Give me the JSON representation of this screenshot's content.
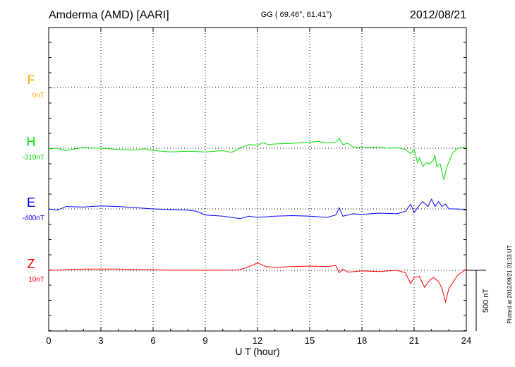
{
  "header": {
    "station": "Amderma (AMD)  [AARI]",
    "coords": "GG ( 69.46°,  61.41°)",
    "date": "2012/08/21"
  },
  "footer": {
    "plotted": "Plotted at 2012/09/21 01:33 UT"
  },
  "chart_data": {
    "type": "line",
    "xlabel": "U T (hour)",
    "xlim": [
      0,
      24
    ],
    "xticks": [
      "0",
      "3",
      "6",
      "9",
      "12",
      "15",
      "18",
      "21",
      "24"
    ],
    "scale_bar": {
      "label": "500 nT",
      "value_nT": 500
    },
    "grid": true,
    "series": [
      {
        "name": "F",
        "baseline": "0nT",
        "color": "#ffa500",
        "x": [],
        "y": []
      },
      {
        "name": "H",
        "baseline": "-310nT",
        "color": "#00e000",
        "x": [
          0,
          0.5,
          1,
          1.5,
          2,
          3,
          4,
          5,
          5.5,
          6,
          7,
          8,
          9,
          10,
          10.5,
          11,
          11.5,
          12,
          12.3,
          12.6,
          13,
          14,
          15,
          15.5,
          16,
          16.5,
          16.7,
          16.9,
          17.2,
          17.5,
          18,
          19,
          19.5,
          20,
          20.5,
          20.8,
          21,
          21.2,
          21.3,
          21.5,
          21.7,
          21.9,
          22.1,
          22.2,
          22.3,
          22.5,
          22.7,
          22.9,
          23.2,
          23.5,
          24
        ],
        "y": [
          -5,
          0,
          -20,
          -5,
          5,
          0,
          -10,
          -15,
          -5,
          -20,
          -30,
          -25,
          -30,
          -20,
          -35,
          0,
          30,
          25,
          45,
          30,
          35,
          40,
          50,
          55,
          45,
          50,
          80,
          30,
          40,
          10,
          5,
          10,
          0,
          5,
          -10,
          -45,
          -10,
          -120,
          -80,
          -150,
          -120,
          -130,
          -100,
          -60,
          -150,
          -130,
          -260,
          -150,
          -40,
          0,
          10
        ]
      },
      {
        "name": "E",
        "baseline": "-400nT",
        "color": "#0000ff",
        "x": [
          0,
          0.5,
          1,
          2,
          3,
          4,
          5,
          6,
          7,
          8,
          8.5,
          9,
          10,
          11,
          11.5,
          12,
          13,
          14,
          15,
          16,
          16.5,
          16.7,
          16.9,
          17.2,
          17.5,
          18,
          19,
          20,
          20.5,
          20.8,
          21,
          21.3,
          21.5,
          21.8,
          22,
          22.2,
          22.4,
          22.6,
          22.8,
          23,
          23.5,
          24
        ],
        "y": [
          0,
          -10,
          20,
          15,
          25,
          20,
          10,
          0,
          -5,
          -10,
          -20,
          -50,
          -60,
          -80,
          -60,
          -70,
          -60,
          -55,
          -60,
          -70,
          -50,
          10,
          -60,
          -50,
          -40,
          -45,
          -35,
          -40,
          -20,
          40,
          -30,
          30,
          60,
          20,
          80,
          20,
          60,
          20,
          40,
          0,
          0,
          -10
        ]
      },
      {
        "name": "Z",
        "baseline": "10nT",
        "color": "#ff0000",
        "x": [
          0,
          1,
          2,
          3,
          4,
          5,
          6,
          7,
          8,
          9,
          10,
          11,
          11.5,
          12,
          12.5,
          13,
          14,
          15,
          16,
          16.5,
          16.7,
          16.9,
          17.2,
          18,
          19,
          20,
          20.5,
          20.8,
          21,
          21.3,
          21.6,
          21.9,
          22.1,
          22.4,
          22.6,
          22.8,
          23,
          23.5,
          24
        ],
        "y": [
          0,
          5,
          10,
          10,
          10,
          5,
          5,
          0,
          0,
          0,
          0,
          5,
          30,
          60,
          30,
          25,
          30,
          35,
          30,
          40,
          -20,
          10,
          -15,
          -5,
          -10,
          0,
          -20,
          -110,
          -60,
          -50,
          -140,
          -80,
          -60,
          -90,
          -150,
          -260,
          -150,
          -40,
          10
        ]
      }
    ]
  }
}
